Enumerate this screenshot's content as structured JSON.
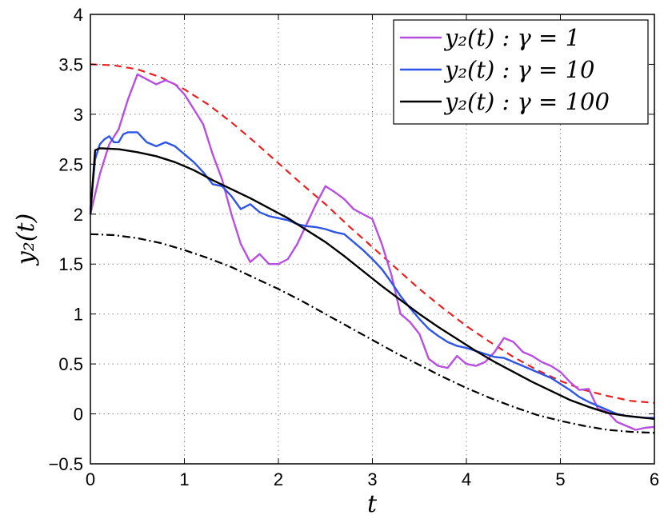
{
  "chart_data": {
    "type": "line",
    "xlabel": "t",
    "ylabel": "y₂(t)",
    "xlim": [
      0,
      6
    ],
    "ylim": [
      -0.5,
      4
    ],
    "xticks": [
      0,
      1,
      2,
      3,
      4,
      5,
      6
    ],
    "yticks": [
      -0.5,
      0,
      0.5,
      1,
      1.5,
      2,
      2.5,
      3,
      3.5,
      4
    ],
    "xtick_labels": [
      "0",
      "1",
      "2",
      "3",
      "4",
      "5",
      "6"
    ],
    "ytick_labels": [
      "−0.5",
      "0",
      "0.5",
      "1",
      "1.5",
      "2",
      "2.5",
      "3",
      "3.5",
      "4"
    ],
    "grid": true,
    "legend_position": "top-right",
    "series": [
      {
        "name": "y₂(t) : γ = 1",
        "color": "#b84fe0",
        "style": "solid",
        "x": [
          0,
          0.1,
          0.2,
          0.3,
          0.4,
          0.5,
          0.6,
          0.7,
          0.8,
          0.9,
          1.0,
          1.1,
          1.2,
          1.3,
          1.4,
          1.5,
          1.6,
          1.7,
          1.8,
          1.9,
          2.0,
          2.1,
          2.2,
          2.3,
          2.4,
          2.5,
          2.6,
          2.7,
          2.8,
          2.9,
          3.0,
          3.1,
          3.2,
          3.3,
          3.4,
          3.5,
          3.6,
          3.7,
          3.8,
          3.9,
          4.0,
          4.1,
          4.2,
          4.3,
          4.4,
          4.5,
          4.6,
          4.7,
          4.8,
          4.9,
          5.0,
          5.1,
          5.2,
          5.3,
          5.4,
          5.5,
          5.6,
          5.7,
          5.8,
          5.9,
          6.0
        ],
        "y": [
          2.0,
          2.4,
          2.7,
          2.85,
          3.15,
          3.4,
          3.35,
          3.3,
          3.34,
          3.3,
          3.2,
          3.05,
          2.9,
          2.6,
          2.35,
          2.0,
          1.7,
          1.52,
          1.6,
          1.5,
          1.5,
          1.55,
          1.7,
          1.9,
          2.1,
          2.28,
          2.22,
          2.15,
          2.05,
          2.0,
          1.95,
          1.7,
          1.4,
          1.0,
          0.92,
          0.8,
          0.55,
          0.48,
          0.46,
          0.58,
          0.5,
          0.48,
          0.52,
          0.62,
          0.76,
          0.72,
          0.62,
          0.58,
          0.52,
          0.48,
          0.42,
          0.32,
          0.24,
          0.25,
          0.05,
          0.02,
          -0.08,
          -0.12,
          -0.16,
          -0.14,
          -0.13
        ]
      },
      {
        "name": "y₂(t) : γ = 10",
        "color": "#2f55e6",
        "style": "solid",
        "x": [
          0,
          0.05,
          0.1,
          0.15,
          0.2,
          0.25,
          0.3,
          0.35,
          0.4,
          0.5,
          0.6,
          0.7,
          0.8,
          0.9,
          1.0,
          1.1,
          1.2,
          1.3,
          1.4,
          1.5,
          1.6,
          1.7,
          1.8,
          1.9,
          2.0,
          2.1,
          2.2,
          2.3,
          2.4,
          2.5,
          2.6,
          2.7,
          2.8,
          2.9,
          3.0,
          3.1,
          3.2,
          3.3,
          3.4,
          3.5,
          3.6,
          3.7,
          3.8,
          3.9,
          4.0,
          4.1,
          4.2,
          4.3,
          4.4,
          4.5,
          4.6,
          4.7,
          4.8,
          4.9,
          5.0,
          5.1,
          5.2,
          5.3,
          5.4,
          5.5,
          5.6,
          5.7,
          5.8,
          5.9,
          6.0
        ],
        "y": [
          2.05,
          2.55,
          2.7,
          2.75,
          2.78,
          2.72,
          2.72,
          2.8,
          2.82,
          2.82,
          2.72,
          2.68,
          2.72,
          2.68,
          2.6,
          2.52,
          2.42,
          2.3,
          2.28,
          2.18,
          2.05,
          2.1,
          2.02,
          1.98,
          1.96,
          1.94,
          1.9,
          1.88,
          1.87,
          1.85,
          1.82,
          1.8,
          1.72,
          1.64,
          1.55,
          1.45,
          1.32,
          1.18,
          1.06,
          0.95,
          0.85,
          0.78,
          0.72,
          0.68,
          0.66,
          0.63,
          0.6,
          0.57,
          0.56,
          0.52,
          0.48,
          0.44,
          0.4,
          0.36,
          0.3,
          0.24,
          0.17,
          0.12,
          0.08,
          0.04,
          0.0,
          -0.02,
          -0.03,
          -0.04,
          -0.04
        ]
      },
      {
        "name": "y₂(t) : γ = 100",
        "color": "#000000",
        "style": "solid",
        "x": [
          0,
          0.05,
          0.1,
          0.3,
          0.5,
          0.7,
          0.9,
          1.1,
          1.3,
          1.5,
          1.7,
          1.9,
          2.1,
          2.3,
          2.5,
          2.7,
          2.9,
          3.1,
          3.3,
          3.5,
          3.7,
          3.9,
          4.1,
          4.3,
          4.5,
          4.7,
          4.9,
          5.1,
          5.3,
          5.5,
          5.7,
          5.9,
          6.0
        ],
        "y": [
          2.0,
          2.64,
          2.66,
          2.65,
          2.62,
          2.58,
          2.52,
          2.44,
          2.34,
          2.25,
          2.16,
          2.06,
          1.96,
          1.84,
          1.72,
          1.58,
          1.43,
          1.28,
          1.14,
          1.0,
          0.87,
          0.75,
          0.63,
          0.52,
          0.42,
          0.32,
          0.23,
          0.14,
          0.07,
          0.01,
          -0.02,
          -0.04,
          -0.05
        ]
      },
      {
        "name": "",
        "color": "#e82020",
        "style": "dashed",
        "x": [
          0,
          0.25,
          0.5,
          0.75,
          1.0,
          1.25,
          1.5,
          1.75,
          2.0,
          2.25,
          2.5,
          2.75,
          3.0,
          3.25,
          3.5,
          3.75,
          4.0,
          4.25,
          4.5,
          4.75,
          5.0,
          5.25,
          5.5,
          5.75,
          6.0
        ],
        "y": [
          3.5,
          3.49,
          3.45,
          3.37,
          3.25,
          3.1,
          2.92,
          2.72,
          2.51,
          2.3,
          2.1,
          1.88,
          1.67,
          1.46,
          1.25,
          1.06,
          0.88,
          0.72,
          0.57,
          0.44,
          0.33,
          0.24,
          0.18,
          0.13,
          0.11
        ]
      },
      {
        "name": "",
        "color": "#000000",
        "style": "dashdot",
        "x": [
          0,
          0.25,
          0.5,
          0.75,
          1.0,
          1.25,
          1.5,
          1.75,
          2.0,
          2.25,
          2.5,
          2.75,
          3.0,
          3.25,
          3.5,
          3.75,
          4.0,
          4.25,
          4.5,
          4.75,
          5.0,
          5.25,
          5.5,
          5.75,
          6.0
        ],
        "y": [
          1.8,
          1.79,
          1.76,
          1.71,
          1.64,
          1.56,
          1.47,
          1.36,
          1.25,
          1.13,
          1.0,
          0.87,
          0.74,
          0.61,
          0.49,
          0.37,
          0.26,
          0.16,
          0.07,
          -0.01,
          -0.07,
          -0.12,
          -0.16,
          -0.18,
          -0.19
        ]
      }
    ]
  }
}
